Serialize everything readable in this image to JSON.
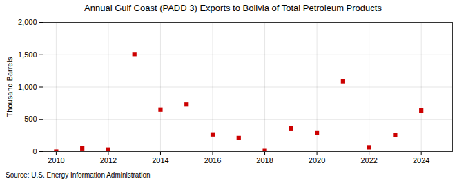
{
  "chart_data": {
    "type": "scatter",
    "title": "Annual Gulf Coast (PADD 3) Exports to Bolivia of Total Petroleum Products",
    "ylabel": "Thousand Barrels",
    "source": "Source: U.S. Energy Information Administration",
    "x": [
      2010,
      2011,
      2012,
      2013,
      2014,
      2015,
      2016,
      2017,
      2018,
      2019,
      2020,
      2021,
      2022,
      2023,
      2024
    ],
    "values": [
      0,
      50,
      30,
      1510,
      650,
      730,
      265,
      210,
      20,
      360,
      295,
      1090,
      65,
      255,
      635
    ],
    "color": "#cc0000",
    "marker": "square",
    "xlim": [
      2009.5,
      2025.2
    ],
    "ylim": [
      0,
      2000
    ],
    "xticks": [
      2010,
      2012,
      2014,
      2016,
      2018,
      2020,
      2022,
      2024
    ],
    "yticks": [
      0,
      500,
      {
        "value": 1000,
        "label": "1,000"
      },
      {
        "value": 1500,
        "label": "1,500"
      },
      {
        "value": 2000,
        "label": "2,000"
      }
    ],
    "grid": true
  }
}
